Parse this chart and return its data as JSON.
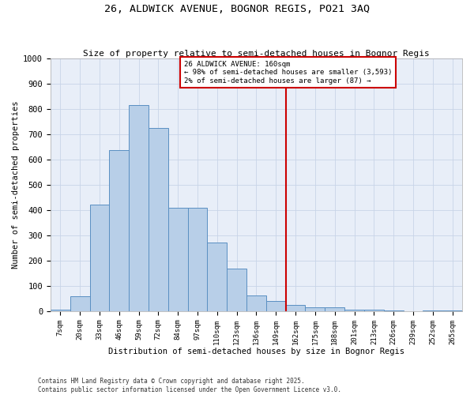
{
  "title1": "26, ALDWICK AVENUE, BOGNOR REGIS, PO21 3AQ",
  "title2": "Size of property relative to semi-detached houses in Bognor Regis",
  "xlabel": "Distribution of semi-detached houses by size in Bognor Regis",
  "ylabel": "Number of semi-detached properties",
  "bar_labels": [
    "7sqm",
    "20sqm",
    "33sqm",
    "46sqm",
    "59sqm",
    "72sqm",
    "84sqm",
    "97sqm",
    "110sqm",
    "123sqm",
    "136sqm",
    "149sqm",
    "162sqm",
    "175sqm",
    "188sqm",
    "201sqm",
    "213sqm",
    "226sqm",
    "239sqm",
    "252sqm",
    "265sqm"
  ],
  "bar_values": [
    5,
    60,
    420,
    638,
    815,
    725,
    408,
    408,
    270,
    168,
    62,
    40,
    25,
    16,
    16,
    5,
    5,
    2,
    0,
    2,
    2
  ],
  "property_size": "160sqm",
  "pct_smaller": 98,
  "count_smaller": 3593,
  "pct_larger": 2,
  "count_larger": 87,
  "bar_color": "#b8cfe8",
  "bar_edge_color": "#5a8fc2",
  "line_color": "#cc0000",
  "box_edge_color": "#cc0000",
  "footnote1": "Contains HM Land Registry data © Crown copyright and database right 2025.",
  "footnote2": "Contains public sector information licensed under the Open Government Licence v3.0.",
  "ylim": [
    0,
    1000
  ],
  "yticks": [
    0,
    100,
    200,
    300,
    400,
    500,
    600,
    700,
    800,
    900,
    1000
  ],
  "bg_color": "#e8eef8"
}
